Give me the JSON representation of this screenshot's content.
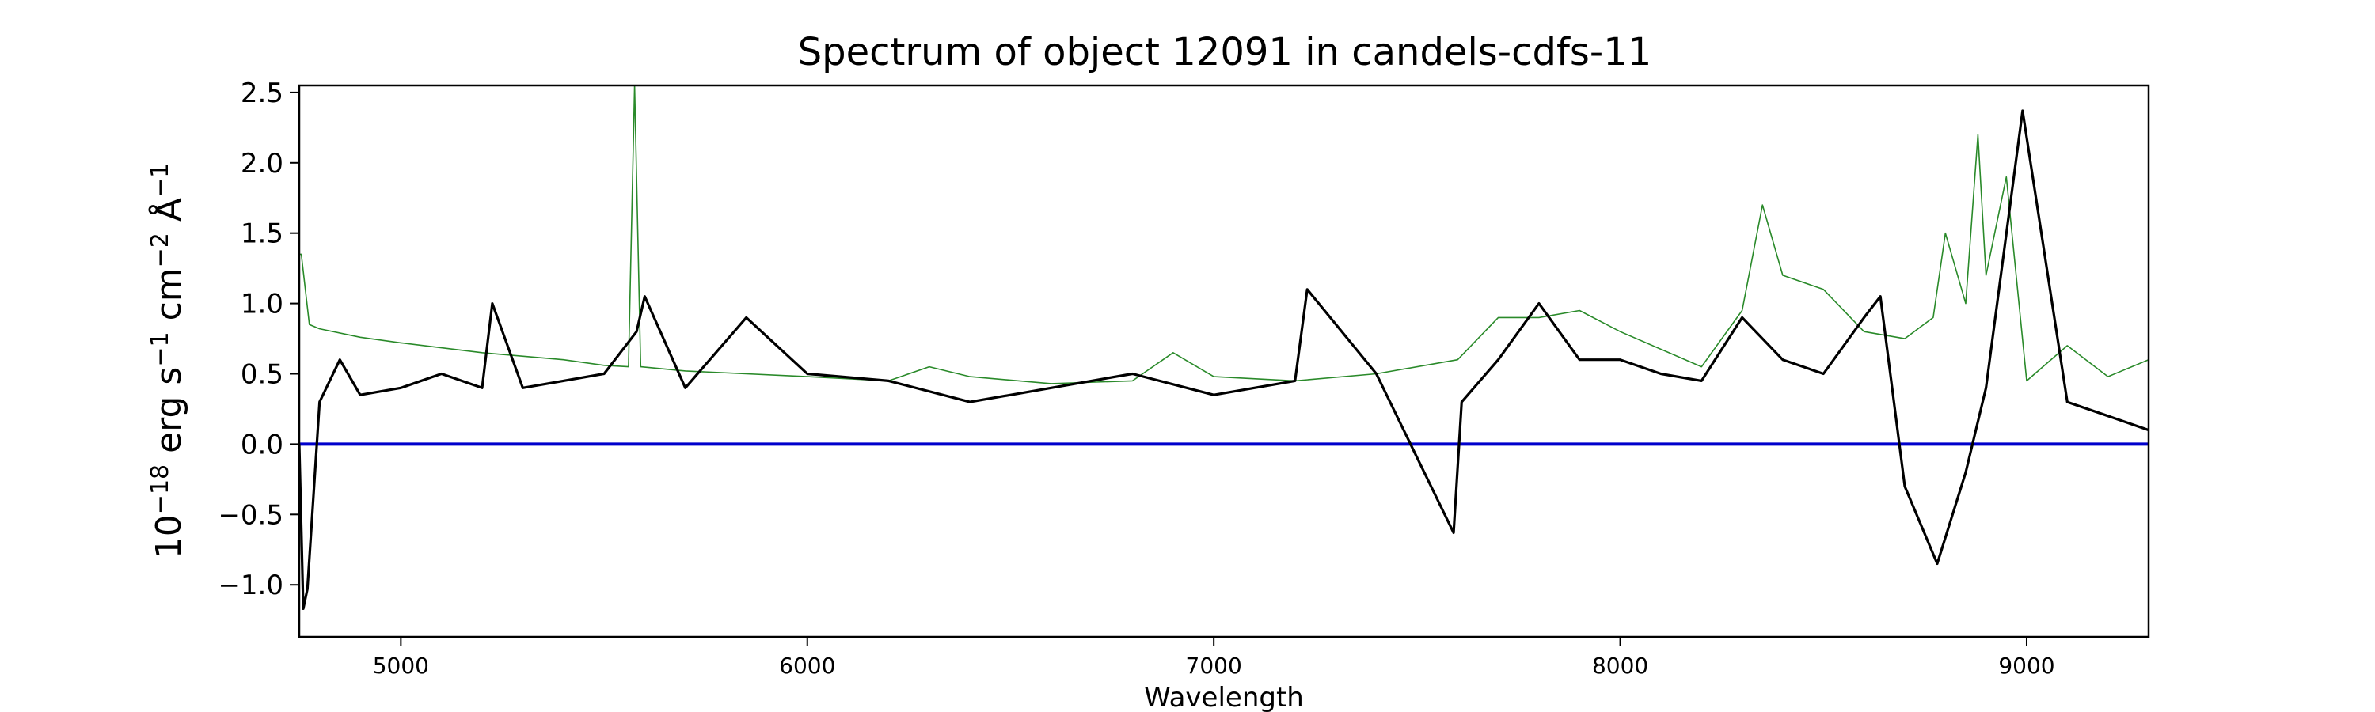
{
  "chart_data": {
    "type": "line",
    "title": "Spectrum of object 12091 in candels-cdfs-11",
    "xlabel": "Wavelength",
    "ylabel_parts": {
      "base": "10",
      "exp1": "−18",
      "mid1": " erg s",
      "exp2": "−1",
      "mid2": " cm",
      "exp3": "−2",
      "mid3": " Å",
      "exp4": "−1"
    },
    "xlim": [
      4750,
      9300
    ],
    "ylim": [
      -1.37,
      2.55
    ],
    "x_ticks": [
      5000,
      6000,
      7000,
      8000,
      9000
    ],
    "x_tick_labels": [
      "5000",
      "6000",
      "7000",
      "8000",
      "9000"
    ],
    "y_ticks": [
      -1.0,
      -0.5,
      0.0,
      0.5,
      1.0,
      1.5,
      2.0,
      2.5
    ],
    "y_tick_labels": [
      "−1.0",
      "−0.5",
      "0.0",
      "0.5",
      "1.0",
      "1.5",
      "2.0",
      "2.5"
    ],
    "grid": false,
    "colors": {
      "flux": "#000000",
      "error": "#2a8a2a",
      "zero": "#0000cc"
    },
    "series": [
      {
        "role": "flux",
        "x": [
          4750,
          4760,
          4770,
          4800,
          4850,
          4900,
          5000,
          5100,
          5200,
          5225,
          5300,
          5400,
          5500,
          5580,
          5600,
          5700,
          5850,
          6000,
          6200,
          6400,
          6600,
          6800,
          7000,
          7200,
          7230,
          7400,
          7590,
          7610,
          7700,
          7800,
          7900,
          8000,
          8100,
          8200,
          8300,
          8400,
          8500,
          8600,
          8640,
          8700,
          8780,
          8850,
          8900,
          8990,
          9100,
          9200,
          9300
        ],
        "y": [
          0.0,
          -1.17,
          -1.03,
          0.3,
          0.6,
          0.35,
          0.4,
          0.5,
          0.4,
          1.0,
          0.4,
          0.45,
          0.5,
          0.8,
          1.05,
          0.4,
          0.9,
          0.5,
          0.45,
          0.3,
          0.4,
          0.5,
          0.35,
          0.45,
          1.1,
          0.5,
          -0.63,
          0.3,
          0.6,
          1.0,
          0.6,
          0.6,
          0.5,
          0.45,
          0.9,
          0.6,
          0.5,
          0.9,
          1.05,
          -0.3,
          -0.85,
          -0.2,
          0.4,
          2.37,
          0.3,
          0.2,
          0.1
        ]
      },
      {
        "role": "error",
        "x": [
          4750,
          4755,
          4775,
          4800,
          4900,
          5000,
          5200,
          5400,
          5500,
          5560,
          5575,
          5590,
          5700,
          6000,
          6200,
          6300,
          6400,
          6600,
          6800,
          6900,
          7000,
          7200,
          7400,
          7600,
          7700,
          7800,
          7900,
          8000,
          8200,
          8300,
          8350,
          8400,
          8500,
          8600,
          8700,
          8770,
          8800,
          8850,
          8880,
          8900,
          8950,
          9000,
          9100,
          9200,
          9300
        ],
        "y": [
          1.35,
          1.35,
          0.85,
          0.82,
          0.76,
          0.72,
          0.65,
          0.6,
          0.56,
          0.55,
          2.55,
          0.55,
          0.52,
          0.48,
          0.45,
          0.55,
          0.48,
          0.43,
          0.45,
          0.65,
          0.48,
          0.45,
          0.5,
          0.6,
          0.9,
          0.9,
          0.95,
          0.8,
          0.55,
          0.95,
          1.7,
          1.2,
          1.1,
          0.8,
          0.75,
          0.9,
          1.5,
          1.0,
          2.2,
          1.2,
          1.9,
          0.45,
          0.7,
          0.48,
          0.6
        ]
      },
      {
        "role": "zero",
        "x": [
          4750,
          9300
        ],
        "y": [
          0.0,
          0.0
        ]
      }
    ]
  }
}
